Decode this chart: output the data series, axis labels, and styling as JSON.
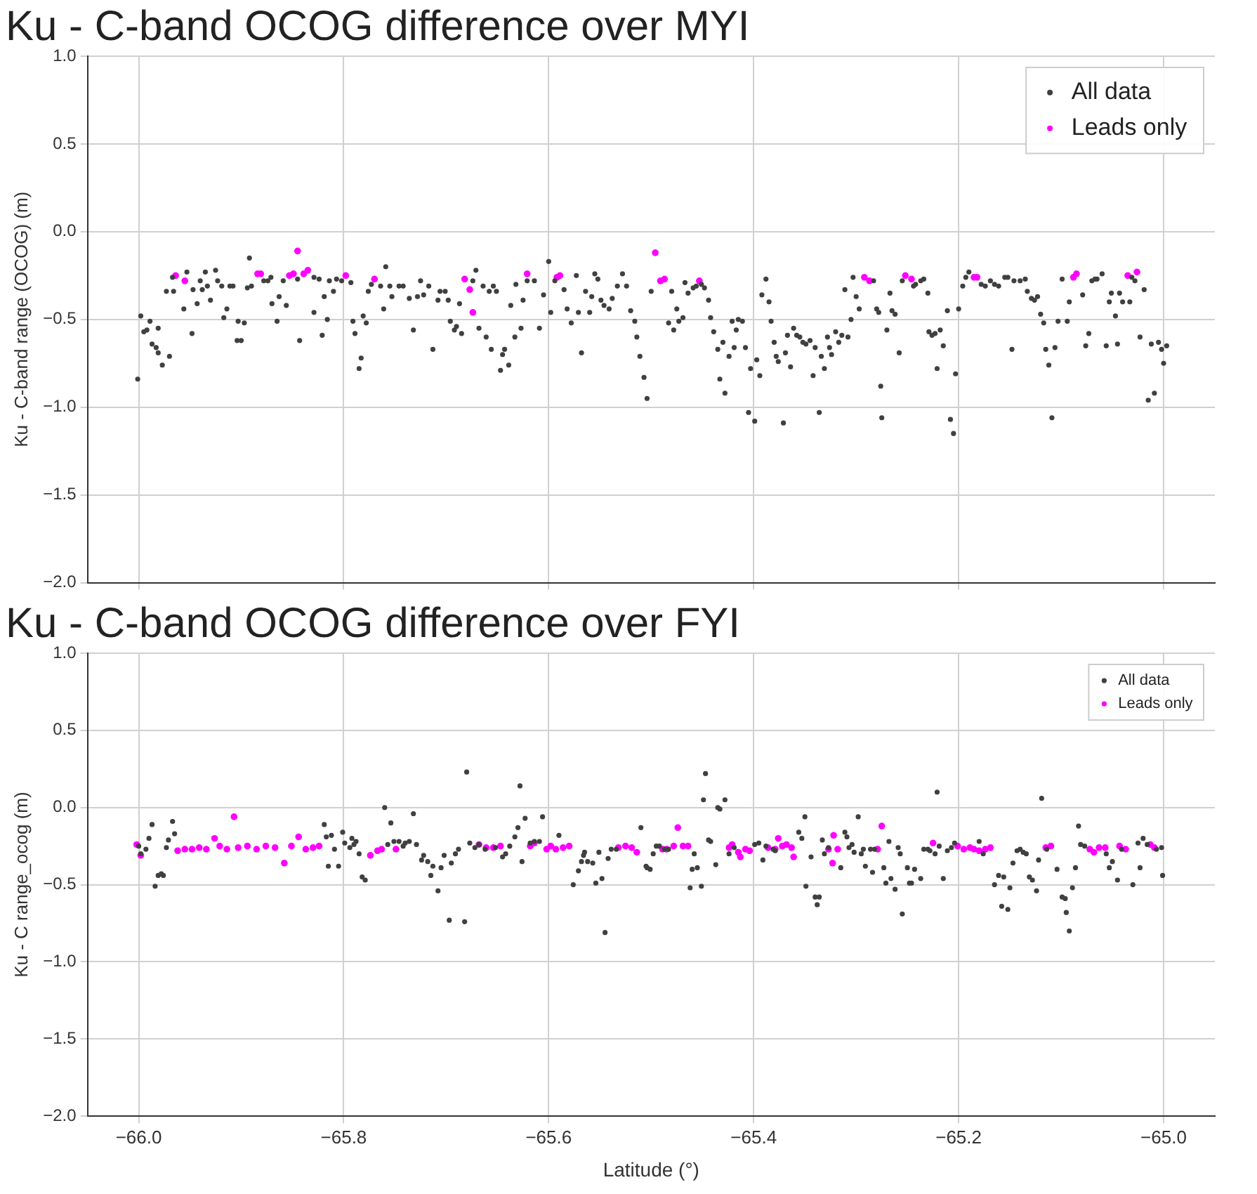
{
  "chart_data": [
    {
      "type": "scatter",
      "title": "Ku - C-band OCOG difference over MYI",
      "ylabel": "Ku - C-band range (OCOG) (m)",
      "xlim": [
        -66.05,
        -64.95
      ],
      "ylim": [
        -2,
        1
      ],
      "xticks": [
        {
          "value": -66,
          "label": null
        },
        {
          "value": -65.8,
          "label": null
        },
        {
          "value": -65.6,
          "label": null
        },
        {
          "value": -65.4,
          "label": null
        },
        {
          "value": -65.2,
          "label": null
        },
        {
          "value": -65,
          "label": null
        }
      ],
      "yticks": [
        {
          "value": 1,
          "label": "1.0"
        },
        {
          "value": 0.5,
          "label": "0.5"
        },
        {
          "value": 0,
          "label": "0.0"
        },
        {
          "value": -0.5,
          "label": "−0.5"
        },
        {
          "value": -1,
          "label": "−1.0"
        },
        {
          "value": -1.5,
          "label": "−1.5"
        },
        {
          "value": -2,
          "label": "−2.0"
        }
      ],
      "tick_labels": "y",
      "grid": true,
      "legend": "top right",
      "marker": "circle",
      "series": [
        {
          "name": "All data",
          "color": "#404040",
          "x": [
            -66.001,
            -65.998,
            -65.995,
            -65.992,
            -65.989,
            -65.987,
            -65.983,
            -65.981,
            -65.977,
            -65.981,
            -65.97,
            -65.973,
            -65.966,
            -65.967,
            -65.956,
            -65.953,
            -65.948,
            -65.947,
            -65.943,
            -65.94,
            -65.938,
            -65.935,
            -65.933,
            -65.93,
            -65.925,
            -65.923,
            -65.919,
            -65.917,
            -65.914,
            -65.911,
            -65.908,
            -65.904,
            -65.903,
            -65.9,
            -65.897,
            -65.894,
            -65.892,
            -65.89,
            -65.878,
            -65.874,
            -65.871,
            -65.87,
            -65.865,
            -65.863,
            -65.859,
            -65.856,
            -65.845,
            -65.843,
            -65.829,
            -65.829,
            -65.824,
            -65.821,
            -65.819,
            -65.816,
            -65.814,
            -65.81,
            -65.807,
            -65.802,
            -65.793,
            -65.791,
            -65.789,
            -65.785,
            -65.783,
            -65.781,
            -65.778,
            -65.776,
            -65.773,
            -65.764,
            -65.761,
            -65.759,
            -65.755,
            -65.753,
            -65.746,
            -65.742,
            -65.736,
            -65.732,
            -65.728,
            -65.725,
            -65.722,
            -65.717,
            -65.713,
            -65.708,
            -65.706,
            -65.701,
            -65.698,
            -65.696,
            -65.692,
            -65.69,
            -65.687,
            -65.685,
            -65.674,
            -65.671,
            -65.668,
            -65.664,
            -65.661,
            -65.658,
            -65.656,
            -65.654,
            -65.651,
            -65.647,
            -65.645,
            -65.643,
            -65.639,
            -65.637,
            -65.633,
            -65.632,
            -65.627,
            -65.625,
            -65.621,
            -65.614,
            -65.609,
            -65.605,
            -65.6,
            -65.598,
            -65.594,
            -65.585,
            -65.582,
            -65.578,
            -65.573,
            -65.571,
            -65.568,
            -65.564,
            -65.56,
            -65.558,
            -65.555,
            -65.552,
            -65.549,
            -65.546,
            -65.541,
            -65.538,
            -65.533,
            -65.528,
            -65.524,
            -65.52,
            -65.516,
            -65.514,
            -65.511,
            -65.507,
            -65.504,
            -65.5,
            -65.48,
            -65.483,
            -65.478,
            -65.475,
            -65.473,
            -65.469,
            -65.467,
            -65.464,
            -65.459,
            -65.456,
            -65.451,
            -65.448,
            -65.444,
            -65.442,
            -65.439,
            -65.435,
            -65.433,
            -65.43,
            -65.428,
            -65.424,
            -65.421,
            -65.419,
            -65.417,
            -65.415,
            -65.411,
            -65.408,
            -65.405,
            -65.403,
            -65.399,
            -65.397,
            -65.394,
            -65.392,
            -65.388,
            -65.385,
            -65.383,
            -65.38,
            -65.378,
            -65.376,
            -65.371,
            -65.369,
            -65.367,
            -65.364,
            -65.361,
            -65.358,
            -65.355,
            -65.352,
            -65.349,
            -65.345,
            -65.342,
            -65.34,
            -65.336,
            -65.334,
            -65.331,
            -65.328,
            -65.326,
            -65.324,
            -65.32,
            -65.317,
            -65.314,
            -65.311,
            -65.308,
            -65.305,
            -65.303,
            -65.3,
            -65.297,
            -65.283,
            -65.28,
            -65.278,
            -65.276,
            -65.275,
            -65.27,
            -65.267,
            -65.265,
            -65.262,
            -65.258,
            -65.255,
            -65.244,
            -65.242,
            -65.237,
            -65.234,
            -65.23,
            -65.229,
            -65.226,
            -65.223,
            -65.221,
            -65.218,
            -65.215,
            -65.211,
            -65.208,
            -65.205,
            -65.203,
            -65.2,
            -65.196,
            -65.193,
            -65.19,
            -65.178,
            -65.174,
            -65.169,
            -65.165,
            -65.161,
            -65.155,
            -65.152,
            -65.148,
            -65.146,
            -65.14,
            -65.135,
            -65.133,
            -65.129,
            -65.126,
            -65.123,
            -65.12,
            -65.117,
            -65.115,
            -65.112,
            -65.109,
            -65.106,
            -65.103,
            -65.099,
            -65.094,
            -65.092,
            -65.079,
            -65.076,
            -65.073,
            -65.07,
            -65.067,
            -65.065,
            -65.06,
            -65.056,
            -65.053,
            -65.051,
            -65.047,
            -65.045,
            -65.043,
            -65.04,
            -65.033,
            -65.031,
            -65.028,
            -65.023,
            -65.019,
            -65.015,
            -65.012,
            -65.009,
            -65.005,
            -65.002,
            -65.0,
            -64.997
          ],
          "values": [
            -0.84,
            -0.48,
            -0.57,
            -0.56,
            -0.51,
            -0.64,
            -0.66,
            -0.69,
            -0.76,
            -0.55,
            -0.71,
            -0.34,
            -0.34,
            -0.26,
            -0.44,
            -0.23,
            -0.58,
            -0.33,
            -0.41,
            -0.28,
            -0.33,
            -0.23,
            -0.31,
            -0.39,
            -0.22,
            -0.28,
            -0.31,
            -0.49,
            -0.44,
            -0.31,
            -0.31,
            -0.62,
            -0.51,
            -0.62,
            -0.52,
            -0.32,
            -0.15,
            -0.31,
            -0.28,
            -0.28,
            -0.26,
            -0.41,
            -0.51,
            -0.37,
            -0.28,
            -0.42,
            -0.27,
            -0.62,
            -0.46,
            -0.26,
            -0.27,
            -0.59,
            -0.37,
            -0.5,
            -0.28,
            -0.34,
            -0.27,
            -0.28,
            -0.29,
            -0.51,
            -0.58,
            -0.78,
            -0.72,
            -0.48,
            -0.52,
            -0.34,
            -0.3,
            -0.31,
            -0.44,
            -0.2,
            -0.31,
            -0.37,
            -0.31,
            -0.31,
            -0.38,
            -0.56,
            -0.37,
            -0.28,
            -0.36,
            -0.31,
            -0.67,
            -0.39,
            -0.34,
            -0.34,
            -0.39,
            -0.51,
            -0.56,
            -0.54,
            -0.41,
            -0.58,
            -0.28,
            -0.22,
            -0.55,
            -0.31,
            -0.6,
            -0.34,
            -0.67,
            -0.31,
            -0.34,
            -0.79,
            -0.7,
            -0.67,
            -0.76,
            -0.42,
            -0.6,
            -0.3,
            -0.55,
            -0.39,
            -0.28,
            -0.28,
            -0.55,
            -0.36,
            -0.17,
            -0.46,
            -0.28,
            -0.33,
            -0.44,
            -0.52,
            -0.25,
            -0.46,
            -0.69,
            -0.34,
            -0.46,
            -0.37,
            -0.24,
            -0.27,
            -0.39,
            -0.42,
            -0.44,
            -0.38,
            -0.31,
            -0.24,
            -0.31,
            -0.45,
            -0.51,
            -0.6,
            -0.71,
            -0.83,
            -0.95,
            -0.34,
            -0.34,
            -0.52,
            -0.56,
            -0.44,
            -0.51,
            -0.49,
            -0.29,
            -0.35,
            -0.32,
            -0.31,
            -0.3,
            -0.32,
            -0.39,
            -0.49,
            -0.57,
            -0.67,
            -0.84,
            -0.63,
            -0.92,
            -0.71,
            -0.51,
            -0.66,
            -0.56,
            -0.5,
            -0.51,
            -0.66,
            -1.03,
            -0.78,
            -1.08,
            -0.73,
            -0.82,
            -0.36,
            -0.27,
            -0.4,
            -0.51,
            -0.63,
            -0.71,
            -0.74,
            -1.09,
            -0.69,
            -0.59,
            -0.77,
            -0.55,
            -0.59,
            -0.6,
            -0.63,
            -0.64,
            -0.62,
            -0.82,
            -0.66,
            -1.03,
            -0.71,
            -0.78,
            -0.6,
            -0.66,
            -0.7,
            -0.57,
            -0.63,
            -0.59,
            -0.33,
            -0.6,
            -0.5,
            -0.26,
            -0.37,
            -0.44,
            -0.28,
            -0.44,
            -0.46,
            -0.88,
            -1.06,
            -0.56,
            -0.35,
            -0.45,
            -0.47,
            -0.69,
            -0.28,
            -0.31,
            -0.3,
            -0.28,
            -0.27,
            -0.35,
            -0.57,
            -0.59,
            -0.58,
            -0.78,
            -0.56,
            -0.65,
            -0.45,
            -1.07,
            -1.15,
            -0.81,
            -0.44,
            -0.31,
            -0.26,
            -0.23,
            -0.3,
            -0.31,
            -0.28,
            -0.3,
            -0.31,
            -0.26,
            -0.26,
            -0.67,
            -0.28,
            -0.28,
            -0.27,
            -0.34,
            -0.38,
            -0.39,
            -0.37,
            -0.47,
            -0.52,
            -0.67,
            -0.76,
            -1.06,
            -0.66,
            -0.51,
            -0.27,
            -0.51,
            -0.4,
            -0.36,
            -0.65,
            -0.58,
            -0.28,
            -0.27,
            -0.27,
            -0.24,
            -0.65,
            -0.4,
            -0.35,
            -0.48,
            -0.64,
            -0.35,
            -0.4,
            -0.4,
            -0.26,
            -0.28,
            -0.6,
            -0.33,
            -0.96,
            -0.64,
            -0.92,
            -0.63,
            -0.67,
            -0.75,
            -0.65
          ]
        },
        {
          "name": "Leads only",
          "color": "#ff00ff",
          "x": [
            -65.964,
            -65.955,
            -65.884,
            -65.881,
            -65.853,
            -65.849,
            -65.845,
            -65.839,
            -65.835,
            -65.798,
            -65.77,
            -65.682,
            -65.677,
            -65.674,
            -65.621,
            -65.592,
            -65.589,
            -65.496,
            -65.491,
            -65.487,
            -65.453,
            -65.292,
            -65.287,
            -65.252,
            -65.246,
            -65.185,
            -65.182,
            -65.088,
            -65.085,
            -65.035,
            -65.026
          ],
          "values": [
            -0.25,
            -0.28,
            -0.24,
            -0.24,
            -0.25,
            -0.24,
            -0.11,
            -0.24,
            -0.22,
            -0.25,
            -0.27,
            -0.27,
            -0.33,
            -0.46,
            -0.24,
            -0.26,
            -0.25,
            -0.12,
            -0.28,
            -0.27,
            -0.28,
            -0.26,
            -0.28,
            -0.25,
            -0.27,
            -0.26,
            -0.26,
            -0.26,
            -0.24,
            -0.25,
            -0.23
          ]
        }
      ]
    },
    {
      "type": "scatter",
      "title": "Ku - C-band OCOG difference over FYI",
      "xlabel": "Latitude (°)",
      "ylabel": "Ku - C range_ocog (m)",
      "xlim": [
        -66.05,
        -64.95
      ],
      "ylim": [
        -2,
        1
      ],
      "xticks": [
        {
          "value": -66,
          "label": "−66.0"
        },
        {
          "value": -65.8,
          "label": "−65.8"
        },
        {
          "value": -65.6,
          "label": "−65.6"
        },
        {
          "value": -65.4,
          "label": "−65.4"
        },
        {
          "value": -65.2,
          "label": "−65.2"
        },
        {
          "value": -65,
          "label": "−65.0"
        }
      ],
      "yticks": [
        {
          "value": 1,
          "label": "1.0"
        },
        {
          "value": 0.5,
          "label": "0.5"
        },
        {
          "value": 0,
          "label": "0.0"
        },
        {
          "value": -0.5,
          "label": "−0.5"
        },
        {
          "value": -1,
          "label": "−1.0"
        },
        {
          "value": -1.5,
          "label": "−1.5"
        },
        {
          "value": -2,
          "label": "−2.0"
        }
      ],
      "grid": true,
      "legend": "top right",
      "marker": "circle",
      "series": [
        {
          "name": "All data",
          "color": "#404040",
          "x": [
            -66.0,
            -65.998,
            -65.993,
            -65.99,
            -65.987,
            -65.984,
            -65.981,
            -65.978,
            -65.976,
            -65.973,
            -65.971,
            -65.967,
            -65.965,
            -65.819,
            -65.817,
            -65.815,
            -65.812,
            -65.809,
            -65.805,
            -65.801,
            -65.799,
            -65.794,
            -65.792,
            -65.79,
            -65.788,
            -65.785,
            -65.782,
            -65.779,
            -65.76,
            -65.757,
            -65.754,
            -65.751,
            -65.746,
            -65.742,
            -65.74,
            -65.736,
            -65.732,
            -65.729,
            -65.724,
            -65.722,
            -65.718,
            -65.715,
            -65.713,
            -65.708,
            -65.705,
            -65.702,
            -65.697,
            -65.695,
            -65.691,
            -65.688,
            -65.682,
            -65.68,
            -65.677,
            -65.672,
            -65.668,
            -65.662,
            -65.652,
            -65.645,
            -65.642,
            -65.638,
            -65.633,
            -65.63,
            -65.628,
            -65.626,
            -65.623,
            -65.618,
            -65.614,
            -65.609,
            -65.606,
            -65.59,
            -65.576,
            -65.571,
            -65.568,
            -65.566,
            -65.565,
            -65.562,
            -65.557,
            -65.554,
            -65.551,
            -65.548,
            -65.545,
            -65.542,
            -65.539,
            -65.534,
            -65.51,
            -65.505,
            -65.504,
            -65.501,
            -65.498,
            -65.495,
            -65.492,
            -65.487,
            -65.483,
            -65.462,
            -65.46,
            -65.458,
            -65.455,
            -65.451,
            -65.449,
            -65.447,
            -65.444,
            -65.442,
            -65.437,
            -65.435,
            -65.433,
            -65.428,
            -65.424,
            -65.419,
            -65.399,
            -65.395,
            -65.391,
            -65.388,
            -65.381,
            -65.379,
            -65.356,
            -65.353,
            -65.35,
            -65.349,
            -65.344,
            -65.34,
            -65.338,
            -65.336,
            -65.333,
            -65.331,
            -65.327,
            -65.315,
            -65.311,
            -65.309,
            -65.307,
            -65.304,
            -65.302,
            -65.298,
            -65.295,
            -65.293,
            -65.291,
            -65.286,
            -65.284,
            -65.282,
            -65.273,
            -65.271,
            -65.268,
            -65.266,
            -65.262,
            -65.259,
            -65.257,
            -65.255,
            -65.25,
            -65.248,
            -65.246,
            -65.243,
            -65.237,
            -65.234,
            -65.23,
            -65.228,
            -65.223,
            -65.221,
            -65.219,
            -65.215,
            -65.211,
            -65.207,
            -65.204,
            -65.18,
            -65.176,
            -65.165,
            -65.161,
            -65.158,
            -65.156,
            -65.152,
            -65.15,
            -65.147,
            -65.143,
            -65.14,
            -65.137,
            -65.134,
            -65.131,
            -65.128,
            -65.124,
            -65.122,
            -65.119,
            -65.114,
            -65.104,
            -65.099,
            -65.096,
            -65.095,
            -65.092,
            -65.089,
            -65.086,
            -65.083,
            -65.081,
            -65.077,
            -65.056,
            -65.053,
            -65.05,
            -65.045,
            -65.041,
            -65.03,
            -65.025,
            -65.023,
            -65.02,
            -65.016,
            -65.007,
            -65.002,
            -65.001
          ],
          "values": [
            -0.25,
            -0.3,
            -0.27,
            -0.2,
            -0.11,
            -0.51,
            -0.44,
            -0.43,
            -0.44,
            -0.26,
            -0.21,
            -0.09,
            -0.17,
            -0.11,
            -0.19,
            -0.38,
            -0.18,
            -0.27,
            -0.38,
            -0.16,
            -0.23,
            -0.26,
            -0.2,
            -0.24,
            -0.22,
            -0.3,
            -0.45,
            -0.47,
            0.0,
            -0.24,
            -0.1,
            -0.22,
            -0.22,
            -0.25,
            -0.23,
            -0.22,
            -0.04,
            -0.24,
            -0.34,
            -0.31,
            -0.35,
            -0.44,
            -0.38,
            -0.54,
            -0.39,
            -0.31,
            -0.73,
            -0.36,
            -0.3,
            -0.27,
            -0.74,
            0.23,
            -0.23,
            -0.26,
            -0.24,
            -0.27,
            -0.26,
            -0.32,
            -0.3,
            -0.25,
            -0.19,
            -0.13,
            0.14,
            -0.35,
            -0.07,
            -0.23,
            -0.22,
            -0.22,
            -0.06,
            -0.18,
            -0.5,
            -0.41,
            -0.35,
            -0.31,
            -0.29,
            -0.35,
            -0.36,
            -0.49,
            -0.29,
            -0.46,
            -0.81,
            -0.33,
            -0.27,
            -0.27,
            -0.13,
            -0.38,
            -0.39,
            -0.4,
            -0.3,
            -0.25,
            -0.25,
            -0.27,
            -0.27,
            -0.52,
            -0.4,
            -0.3,
            -0.39,
            -0.51,
            0.05,
            0.22,
            -0.21,
            -0.22,
            -0.37,
            0.0,
            -0.01,
            0.05,
            -0.3,
            -0.26,
            -0.24,
            -0.23,
            -0.34,
            -0.25,
            -0.27,
            -0.28,
            -0.16,
            -0.2,
            -0.06,
            -0.51,
            -0.32,
            -0.58,
            -0.63,
            -0.58,
            -0.21,
            -0.3,
            -0.26,
            -0.39,
            -0.16,
            -0.19,
            -0.26,
            -0.24,
            -0.29,
            -0.06,
            -0.3,
            -0.27,
            -0.38,
            -0.27,
            -0.42,
            -0.27,
            -0.39,
            -0.49,
            -0.22,
            -0.46,
            -0.53,
            -0.26,
            -0.3,
            -0.69,
            -0.39,
            -0.49,
            -0.49,
            -0.4,
            -0.46,
            -0.27,
            -0.27,
            -0.28,
            -0.3,
            0.1,
            -0.25,
            -0.46,
            -0.28,
            -0.26,
            -0.23,
            -0.22,
            -0.3,
            -0.5,
            -0.44,
            -0.64,
            -0.45,
            -0.66,
            -0.52,
            -0.36,
            -0.28,
            -0.27,
            -0.29,
            -0.3,
            -0.45,
            -0.47,
            -0.54,
            -0.34,
            0.06,
            -0.27,
            -0.4,
            -0.58,
            -0.59,
            -0.68,
            -0.8,
            -0.52,
            -0.39,
            -0.12,
            -0.24,
            -0.25,
            -0.3,
            -0.39,
            -0.35,
            -0.47,
            -0.27,
            -0.5,
            -0.23,
            -0.39,
            -0.2,
            -0.24,
            -0.27,
            -0.26,
            -0.44
          ]
        },
        {
          "name": "Leads only",
          "color": "#ff00ff",
          "x": [
            -66.002,
            -65.998,
            -65.962,
            -65.955,
            -65.948,
            -65.941,
            -65.934,
            -65.926,
            -65.921,
            -65.914,
            -65.907,
            -65.903,
            -65.894,
            -65.885,
            -65.876,
            -65.867,
            -65.858,
            -65.851,
            -65.844,
            -65.837,
            -65.83,
            -65.824,
            -65.774,
            -65.767,
            -65.763,
            -65.749,
            -65.668,
            -65.661,
            -65.654,
            -65.647,
            -65.618,
            -65.614,
            -65.602,
            -65.598,
            -65.593,
            -65.586,
            -65.58,
            -65.532,
            -65.525,
            -65.519,
            -65.514,
            -65.489,
            -65.485,
            -65.478,
            -65.474,
            -65.469,
            -65.464,
            -65.424,
            -65.421,
            -65.415,
            -65.413,
            -65.408,
            -65.404,
            -65.386,
            -65.379,
            -65.376,
            -65.372,
            -65.368,
            -65.363,
            -65.361,
            -65.327,
            -65.323,
            -65.322,
            -65.318,
            -65.279,
            -65.275,
            -65.225,
            -65.201,
            -65.195,
            -65.189,
            -65.185,
            -65.18,
            -65.174,
            -65.169,
            -65.115,
            -65.11,
            -65.072,
            -65.068,
            -65.063,
            -65.057,
            -65.043,
            -65.037,
            -65.013,
            -65.009
          ],
          "values": [
            -0.24,
            -0.31,
            -0.28,
            -0.27,
            -0.27,
            -0.26,
            -0.27,
            -0.2,
            -0.25,
            -0.27,
            -0.06,
            -0.26,
            -0.25,
            -0.27,
            -0.25,
            -0.26,
            -0.36,
            -0.25,
            -0.19,
            -0.27,
            -0.26,
            -0.25,
            -0.31,
            -0.28,
            -0.27,
            -0.27,
            -0.24,
            -0.26,
            -0.26,
            -0.25,
            -0.25,
            -0.23,
            -0.27,
            -0.25,
            -0.27,
            -0.26,
            -0.25,
            -0.26,
            -0.25,
            -0.26,
            -0.29,
            -0.27,
            -0.27,
            -0.25,
            -0.13,
            -0.25,
            -0.25,
            -0.26,
            -0.24,
            -0.29,
            -0.32,
            -0.27,
            -0.28,
            -0.26,
            -0.27,
            -0.2,
            -0.25,
            -0.24,
            -0.26,
            -0.32,
            -0.27,
            -0.36,
            -0.18,
            -0.27,
            -0.27,
            -0.12,
            -0.23,
            -0.25,
            -0.27,
            -0.26,
            -0.27,
            -0.28,
            -0.27,
            -0.26,
            -0.26,
            -0.25,
            -0.27,
            -0.29,
            -0.26,
            -0.26,
            -0.25,
            -0.27,
            -0.24,
            -0.26
          ]
        }
      ]
    }
  ]
}
